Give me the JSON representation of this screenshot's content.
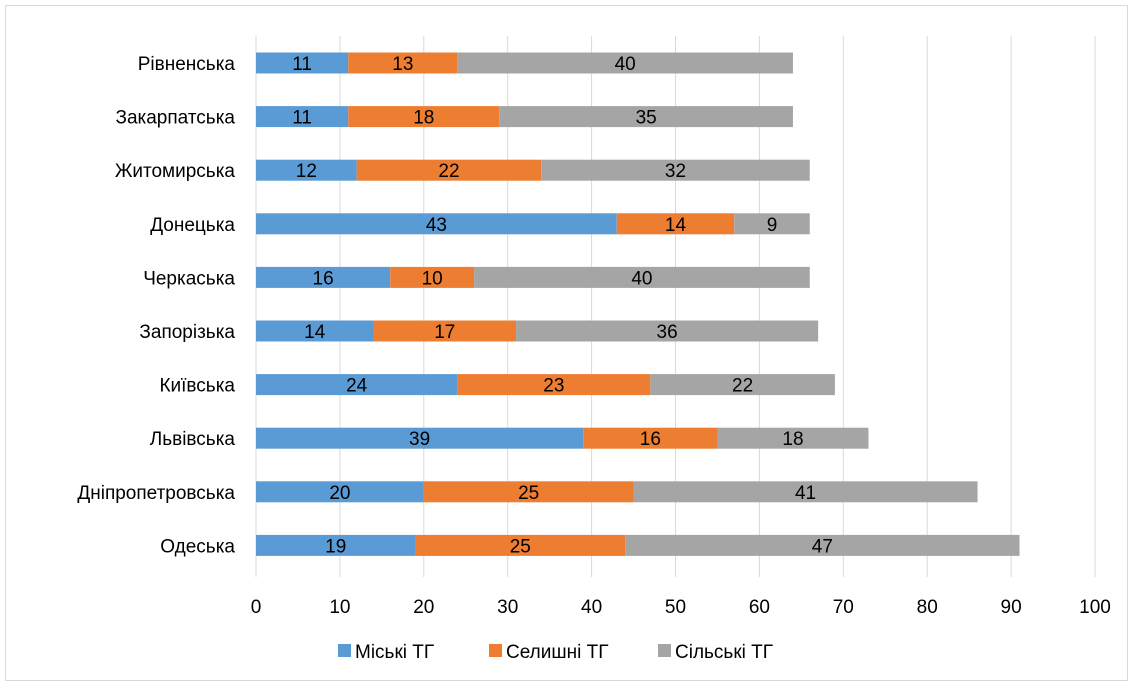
{
  "chart_data": {
    "type": "bar",
    "orientation": "horizontal",
    "stacked": true,
    "categories": [
      "Рівненська",
      "Закарпатська",
      "Житомирська",
      "Донецька",
      "Черкаська",
      "Запорізька",
      "Київська",
      "Львівська",
      "Дніпропетровська",
      "Одеська"
    ],
    "series": [
      {
        "name": "Міські ТГ",
        "color": "#5b9bd5",
        "values": [
          11,
          11,
          12,
          43,
          16,
          14,
          24,
          39,
          20,
          19
        ]
      },
      {
        "name": "Селишні ТГ",
        "color": "#ed7d31",
        "values": [
          13,
          18,
          22,
          14,
          10,
          17,
          23,
          16,
          25,
          25
        ]
      },
      {
        "name": "Сільські ТГ",
        "color": "#a5a5a5",
        "values": [
          40,
          35,
          32,
          9,
          40,
          36,
          22,
          18,
          41,
          47
        ]
      }
    ],
    "xlim": [
      0,
      100
    ],
    "x_ticks": [
      0,
      10,
      20,
      30,
      40,
      50,
      60,
      70,
      80,
      90,
      100
    ],
    "grid": true,
    "data_labels": true,
    "legend_position": "bottom",
    "title": "",
    "xlabel": "",
    "ylabel": ""
  }
}
